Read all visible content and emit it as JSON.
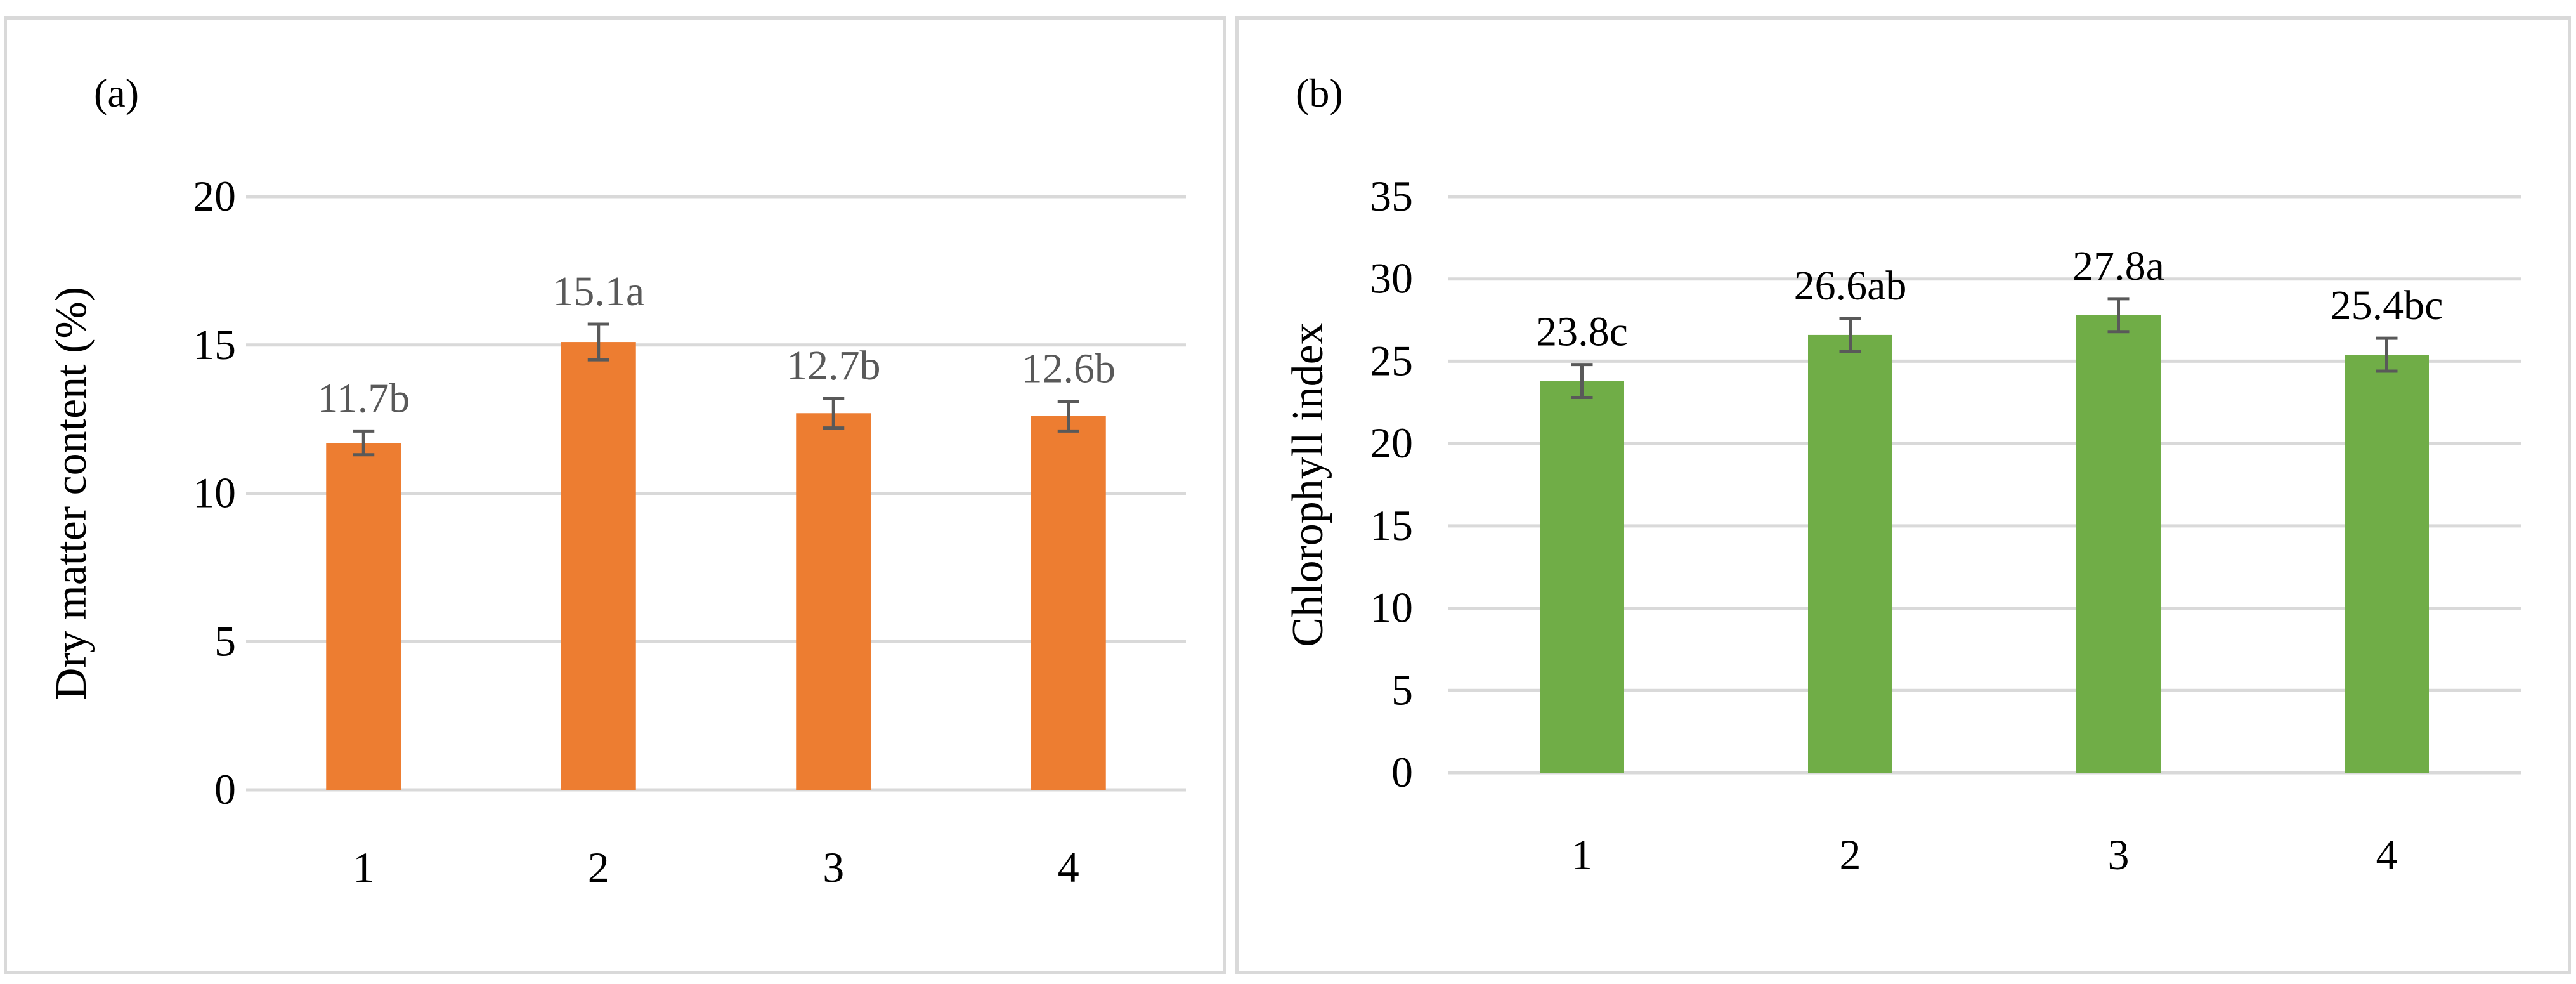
{
  "chart_data": [
    {
      "type": "bar",
      "panel_label": "(a)",
      "title": "",
      "xlabel": "",
      "ylabel": "Dry matter content (%)",
      "categories": [
        "1",
        "2",
        "3",
        "4"
      ],
      "values": [
        11.7,
        15.1,
        12.7,
        12.6
      ],
      "error": [
        0.4,
        0.6,
        0.5,
        0.5
      ],
      "data_labels": [
        "11.7b",
        "15.1a",
        "12.7b",
        "12.6b"
      ],
      "ylim": [
        0,
        20
      ],
      "yticks": [
        0,
        5,
        10,
        15,
        20
      ],
      "ytick_labels": [
        "0",
        "5",
        "10",
        "15",
        "20"
      ],
      "grid": true,
      "bar_color": "#ed7d31",
      "label_color": "#595959"
    },
    {
      "type": "bar",
      "panel_label": "(b)",
      "title": "",
      "xlabel": "",
      "ylabel": "Chlorophyll index",
      "categories": [
        "1",
        "2",
        "3",
        "4"
      ],
      "values": [
        23.8,
        26.6,
        27.8,
        25.4
      ],
      "error": [
        1.0,
        1.0,
        1.0,
        1.0
      ],
      "data_labels": [
        "23.8c",
        "26.6ab",
        "27.8a",
        "25.4bc"
      ],
      "ylim": [
        0,
        35
      ],
      "yticks": [
        0,
        5,
        10,
        15,
        20,
        25,
        30,
        35
      ],
      "ytick_labels": [
        "0",
        "5",
        "10",
        "15",
        "20",
        "25",
        "30",
        "35"
      ],
      "grid": true,
      "bar_color": "#70ad47",
      "label_color": "#000000"
    }
  ]
}
